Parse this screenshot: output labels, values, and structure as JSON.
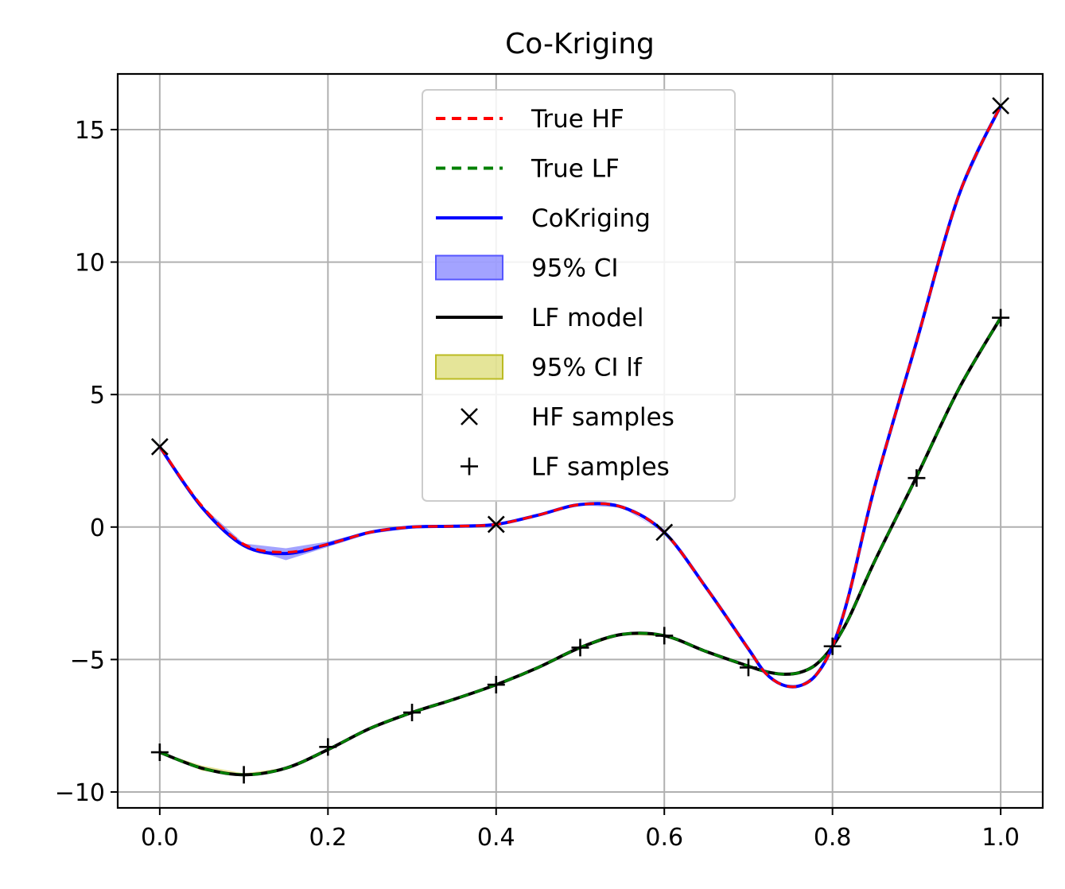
{
  "chart_data": {
    "type": "line",
    "title": "Co-Kriging",
    "xlabel": "",
    "ylabel": "",
    "xlim": [
      -0.05,
      1.05
    ],
    "ylim": [
      -10.6,
      17.1
    ],
    "xticks": [
      0.0,
      0.2,
      0.4,
      0.6,
      0.8,
      1.0
    ],
    "xtick_labels": [
      "0.0",
      "0.2",
      "0.4",
      "0.6",
      "0.8",
      "1.0"
    ],
    "yticks": [
      -10,
      -5,
      0,
      5,
      10,
      15
    ],
    "ytick_labels": [
      "−10",
      "−5",
      "0",
      "5",
      "10",
      "15"
    ],
    "grid": true,
    "legend_position": "top-center",
    "colors": {
      "true_hf": "#ff0000",
      "true_lf": "#008000",
      "cokriging": "#0000ff",
      "ci": "#6666ff",
      "lf_model": "#000000",
      "ci_lf": "#cccc33",
      "grid": "#b0b0b0"
    },
    "x": [
      0.0,
      0.05,
      0.1,
      0.15,
      0.2,
      0.25,
      0.3,
      0.35,
      0.4,
      0.45,
      0.5,
      0.55,
      0.6,
      0.65,
      0.7,
      0.72,
      0.74,
      0.76,
      0.78,
      0.8,
      0.82,
      0.85,
      0.9,
      0.95,
      1.0
    ],
    "series": [
      {
        "name": "True HF",
        "style": "dashed",
        "color": "#ff0000",
        "values": [
          3.03,
          0.8,
          -0.65,
          -0.95,
          -0.65,
          -0.2,
          0.0,
          0.03,
          0.1,
          0.45,
          0.85,
          0.75,
          -0.2,
          -2.3,
          -4.6,
          -5.5,
          -5.95,
          -6.0,
          -5.6,
          -4.5,
          -2.5,
          1.5,
          7.0,
          12.5,
          15.9
        ]
      },
      {
        "name": "True LF",
        "style": "dashed",
        "color": "#008000",
        "values": [
          -8.5,
          -9.1,
          -9.35,
          -9.1,
          -8.4,
          -7.6,
          -7.0,
          -6.5,
          -5.95,
          -5.3,
          -4.55,
          -4.05,
          -4.1,
          -4.7,
          -5.25,
          -5.45,
          -5.55,
          -5.5,
          -5.2,
          -4.5,
          -3.4,
          -1.3,
          1.9,
          5.2,
          7.9
        ]
      },
      {
        "name": "CoKriging",
        "style": "solid",
        "color": "#0000ff",
        "values": [
          3.03,
          0.75,
          -0.7,
          -1.0,
          -0.65,
          -0.2,
          0.0,
          0.03,
          0.1,
          0.45,
          0.85,
          0.75,
          -0.2,
          -2.3,
          -4.6,
          -5.5,
          -5.95,
          -6.0,
          -5.6,
          -4.5,
          -2.5,
          1.5,
          7.0,
          12.5,
          15.9
        ]
      },
      {
        "name": "LF model",
        "style": "solid",
        "color": "#000000",
        "values": [
          -8.5,
          -9.1,
          -9.35,
          -9.1,
          -8.4,
          -7.6,
          -7.0,
          -6.5,
          -5.95,
          -5.3,
          -4.55,
          -4.05,
          -4.1,
          -4.7,
          -5.25,
          -5.45,
          -5.55,
          -5.5,
          -5.2,
          -4.5,
          -3.4,
          -1.3,
          1.9,
          5.2,
          7.9
        ]
      }
    ],
    "ci_band": {
      "name": "95% CI",
      "lower": [
        3.03,
        0.7,
        -0.75,
        -1.25,
        -0.75,
        -0.25,
        -0.05,
        -0.02,
        0.1,
        0.43,
        0.83,
        0.73,
        -0.2,
        -2.32,
        -4.62,
        -5.52,
        -5.97,
        -6.02,
        -5.62,
        -4.5,
        -2.55,
        1.45,
        6.95,
        12.45,
        15.9
      ],
      "upper": [
        3.03,
        0.8,
        -0.62,
        -0.8,
        -0.55,
        -0.15,
        0.05,
        0.08,
        0.1,
        0.47,
        0.87,
        0.77,
        -0.2,
        -2.28,
        -4.58,
        -5.48,
        -5.93,
        -5.98,
        -5.58,
        -4.5,
        -2.45,
        1.55,
        7.05,
        12.55,
        15.9
      ]
    },
    "ci_lf_band": {
      "name": "95% CI lf",
      "lower": [
        -8.5,
        -9.2,
        -9.4,
        -9.12,
        -8.42,
        -7.62,
        -7.02,
        -6.52,
        -5.97,
        -5.32,
        -4.57,
        -4.07,
        -4.12,
        -4.72,
        -5.27,
        -5.47,
        -5.57,
        -5.52,
        -5.22,
        -4.52,
        -3.42,
        -1.32,
        1.88,
        5.18,
        7.9
      ],
      "upper": [
        -8.5,
        -9.0,
        -9.3,
        -9.08,
        -8.38,
        -7.58,
        -6.98,
        -6.48,
        -5.93,
        -5.28,
        -4.53,
        -4.03,
        -4.08,
        -4.68,
        -5.23,
        -5.43,
        -5.53,
        -5.48,
        -5.18,
        -4.48,
        -3.38,
        -1.28,
        1.92,
        5.22,
        7.9
      ]
    },
    "hf_samples": {
      "name": "HF samples",
      "marker": "x",
      "x": [
        0.0,
        0.4,
        0.6,
        1.0
      ],
      "y": [
        3.03,
        0.1,
        -0.2,
        15.9
      ]
    },
    "lf_samples": {
      "name": "LF samples",
      "marker": "+",
      "x": [
        0.0,
        0.1,
        0.2,
        0.3,
        0.4,
        0.5,
        0.6,
        0.7,
        0.8,
        0.9,
        1.0
      ],
      "y": [
        -8.5,
        -9.35,
        -8.3,
        -7.0,
        -5.95,
        -4.55,
        -4.1,
        -5.3,
        -4.5,
        1.85,
        7.9
      ]
    },
    "legend": [
      "True HF",
      "True LF",
      "CoKriging",
      "95% CI",
      "LF model",
      "95% CI lf",
      "HF samples",
      "LF samples"
    ]
  }
}
